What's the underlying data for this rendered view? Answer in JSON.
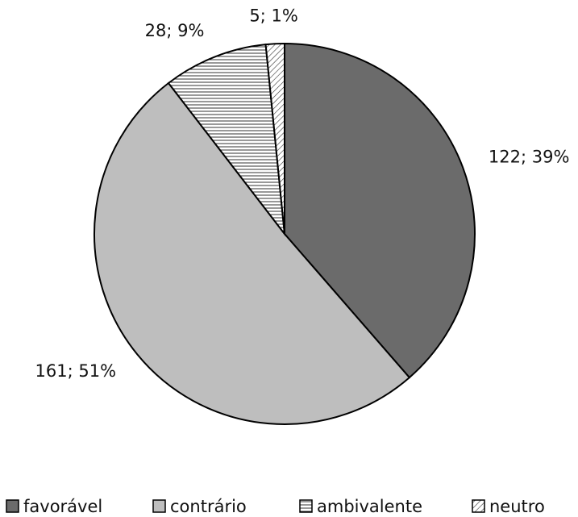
{
  "chart_data": {
    "type": "pie",
    "categories": [
      "favorável",
      "contrário",
      "ambivalente",
      "neutro"
    ],
    "values": [
      122,
      161,
      28,
      5
    ],
    "value_labels": [
      "122; 39%",
      "161; 51%",
      "28; 9%",
      "5; 1%"
    ],
    "colors": [
      "#6b6b6b",
      "#bebebe",
      "#ffffff",
      "#ffffff"
    ],
    "patterns": [
      "solid",
      "solid",
      "horizontal",
      "diagonal"
    ],
    "legend": "bottom"
  }
}
